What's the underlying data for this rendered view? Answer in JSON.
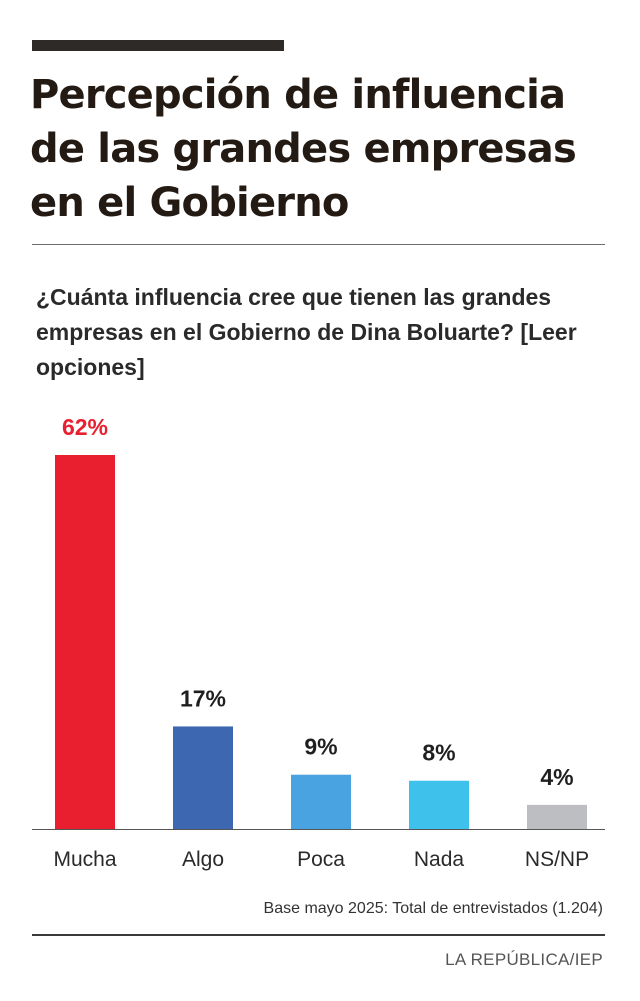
{
  "header": {
    "title": "Percepción de influencia de las grandes empresas en el Gobierno",
    "question": "¿Cuánta influencia cree que tienen las grandes empresas en el Gobierno de Dina Boluarte? [Leer opciones]"
  },
  "chart_data": {
    "type": "bar",
    "categories": [
      "Mucha",
      "Algo",
      "Poca",
      "Nada",
      "NS/NP"
    ],
    "values": [
      62,
      17,
      9,
      8,
      4
    ],
    "value_labels": [
      "62%",
      "17%",
      "9%",
      "8%",
      "4%"
    ],
    "colors": [
      "#e91f30",
      "#3d67b1",
      "#48a3e0",
      "#3ec2ec",
      "#bdbec2"
    ],
    "highlight_label_color": "#e91f30",
    "label_color": "#1f1f1f",
    "title": "Percepción de influencia de las grandes empresas en el Gobierno",
    "xlabel": "",
    "ylabel": "",
    "ylim": [
      0,
      62
    ],
    "grid": false,
    "legend": "none"
  },
  "footer": {
    "base_note": "Base mayo 2025: Total de entrevistados (1.204)",
    "source": "LA REPÚBLICA/IEP"
  }
}
